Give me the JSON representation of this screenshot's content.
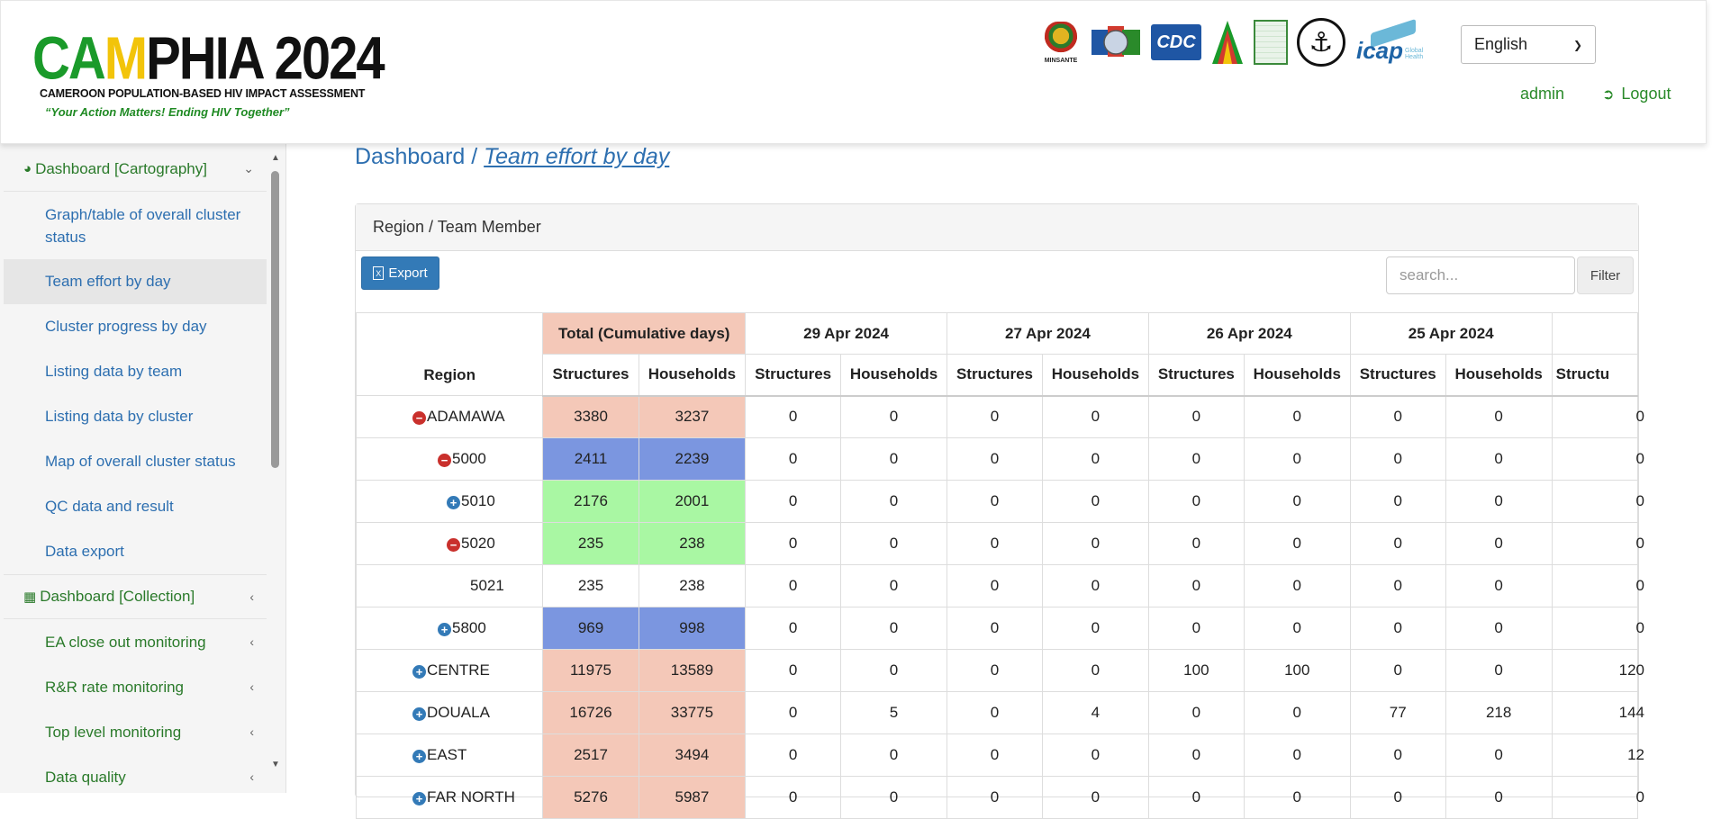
{
  "logo": {
    "brand_parts": [
      "CA",
      "M",
      "PHIA",
      " 2024"
    ],
    "subtitle": "CAMEROON POPULATION-BASED HIV IMPACT ASSESSMENT",
    "slogan": "“Your Action Matters! Ending HIV Together”"
  },
  "partners": {
    "minsante_label": "MINSANTE",
    "cdc_label": "CDC",
    "icap_label": "icap",
    "icap_sub": "Global Health"
  },
  "header": {
    "language": "English",
    "user": "admin",
    "logout": "Logout"
  },
  "sidebar": {
    "group_cartography": "Dashboard [Cartography]",
    "cartography_items": [
      "Graph/table of overall cluster status",
      "Team effort by day",
      "Cluster progress by day",
      "Listing data by team",
      "Listing data by cluster",
      "Map of overall cluster status",
      "QC data and result",
      "Data export"
    ],
    "group_collection": "Dashboard [Collection]",
    "collection_items": [
      "EA close out monitoring",
      "R&R rate monitoring",
      "Top level monitoring",
      "Data quality"
    ]
  },
  "breadcrumb": {
    "root": "Dashboard",
    "sep": " / ",
    "current": "Team effort by day"
  },
  "panel": {
    "title": "Region / Team Member",
    "export_label": "Export",
    "search_placeholder": "search...",
    "filter_label": "Filter"
  },
  "table": {
    "region_header": "Region",
    "total_header": "Total (Cumulative days)",
    "date_headers": [
      "29 Apr 2024",
      "27 Apr 2024",
      "26 Apr 2024",
      "25 Apr 2024"
    ],
    "sub_structures": "Structures",
    "sub_households": "Households",
    "truncated_sub": "Structu",
    "rows": [
      {
        "region": "ADAMAWA",
        "toggle": "minus",
        "level": 0,
        "tot_s": "3380",
        "tot_h": "3237",
        "color": "salmon",
        "v": [
          "0",
          "0",
          "0",
          "0",
          "0",
          "0",
          "0",
          "0"
        ],
        "last": "0"
      },
      {
        "region": "5000",
        "toggle": "minus",
        "level": 1,
        "tot_s": "2411",
        "tot_h": "2239",
        "color": "blue",
        "v": [
          "0",
          "0",
          "0",
          "0",
          "0",
          "0",
          "0",
          "0"
        ],
        "last": "0"
      },
      {
        "region": "5010",
        "toggle": "plus",
        "level": 2,
        "tot_s": "2176",
        "tot_h": "2001",
        "color": "green",
        "v": [
          "0",
          "0",
          "0",
          "0",
          "0",
          "0",
          "0",
          "0"
        ],
        "last": "0"
      },
      {
        "region": "5020",
        "toggle": "minus",
        "level": 2,
        "tot_s": "235",
        "tot_h": "238",
        "color": "green",
        "v": [
          "0",
          "0",
          "0",
          "0",
          "0",
          "0",
          "0",
          "0"
        ],
        "last": "0"
      },
      {
        "region": "5021",
        "toggle": "",
        "level": 3,
        "tot_s": "235",
        "tot_h": "238",
        "color": "none",
        "v": [
          "0",
          "0",
          "0",
          "0",
          "0",
          "0",
          "0",
          "0"
        ],
        "last": "0"
      },
      {
        "region": "5800",
        "toggle": "plus",
        "level": 1,
        "tot_s": "969",
        "tot_h": "998",
        "color": "blue",
        "v": [
          "0",
          "0",
          "0",
          "0",
          "0",
          "0",
          "0",
          "0"
        ],
        "last": "0"
      },
      {
        "region": "CENTRE",
        "toggle": "plus",
        "level": 0,
        "tot_s": "11975",
        "tot_h": "13589",
        "color": "salmon",
        "v": [
          "0",
          "0",
          "0",
          "0",
          "100",
          "100",
          "0",
          "0"
        ],
        "last": "120"
      },
      {
        "region": "DOUALA",
        "toggle": "plus",
        "level": 0,
        "tot_s": "16726",
        "tot_h": "33775",
        "color": "salmon",
        "v": [
          "0",
          "5",
          "0",
          "4",
          "0",
          "0",
          "77",
          "218"
        ],
        "last": "144"
      },
      {
        "region": "EAST",
        "toggle": "plus",
        "level": 0,
        "tot_s": "2517",
        "tot_h": "3494",
        "color": "salmon",
        "v": [
          "0",
          "0",
          "0",
          "0",
          "0",
          "0",
          "0",
          "0"
        ],
        "last": "12"
      },
      {
        "region": "FAR NORTH",
        "toggle": "plus",
        "level": 0,
        "tot_s": "5276",
        "tot_h": "5987",
        "color": "salmon",
        "v": [
          "0",
          "0",
          "0",
          "0",
          "0",
          "0",
          "0",
          "0"
        ],
        "last": "0"
      }
    ]
  }
}
